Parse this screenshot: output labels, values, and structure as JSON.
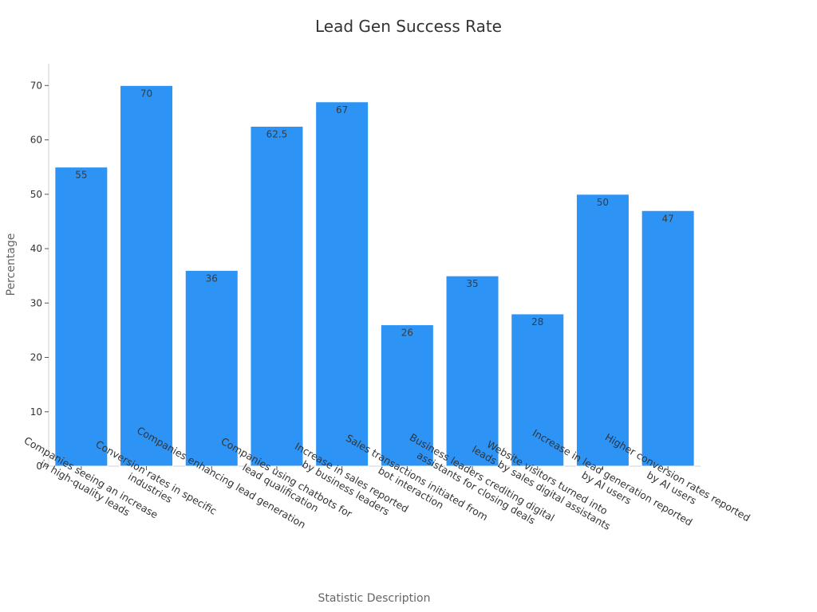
{
  "chart_data": {
    "type": "bar",
    "title": "Lead Gen Success Rate",
    "xlabel": "Statistic Description",
    "ylabel": "Percentage",
    "ylim": [
      0,
      74
    ],
    "yticks": [
      0,
      10,
      20,
      30,
      40,
      50,
      60,
      70
    ],
    "categories": [
      [
        "Companies seeing an increase",
        "in high-quality leads"
      ],
      [
        "Conversion rates in specific",
        "industries"
      ],
      [
        "Companies enhancing lead generation"
      ],
      [
        "Companies using chatbots for",
        "lead qualification"
      ],
      [
        "Increase in sales reported",
        "by business leaders"
      ],
      [
        "Sales transactions initiated from",
        "bot interaction"
      ],
      [
        "Business leaders crediting digital",
        "assistants for closing deals"
      ],
      [
        "Website visitors turned into",
        "leads by sales digital assistants"
      ],
      [
        "Increase in lead generation reported",
        "by AI users"
      ],
      [
        "Higher conversion rates reported",
        "by AI users"
      ]
    ],
    "values": [
      55,
      70,
      36,
      62.5,
      67,
      26,
      35,
      28,
      50,
      47
    ],
    "data_labels": [
      "55",
      "70",
      "36",
      "62.5",
      "67",
      "26",
      "35",
      "28",
      "50",
      "47"
    ],
    "colors": {
      "bar": "#2d94f6",
      "bar_edge": "#ffffff",
      "axis": "#d0d0d0"
    },
    "grid": false,
    "legend": "none"
  }
}
